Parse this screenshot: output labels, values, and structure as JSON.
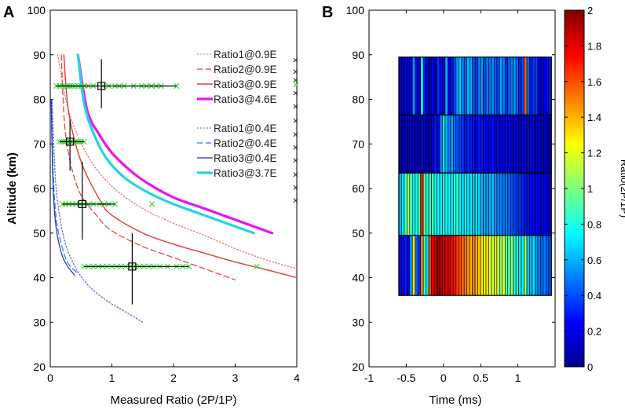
{
  "panels": {
    "a_label": "A",
    "b_label": "B"
  },
  "chart_data": [
    {
      "type": "line",
      "panel": "A",
      "xlabel": "Measured Ratio (2P/1P)",
      "ylabel": "Altitude (km)",
      "xlim": [
        0,
        4
      ],
      "ylim": [
        20,
        100
      ],
      "xticks": [
        "0",
        "1",
        "2",
        "3",
        "4"
      ],
      "yticks": [
        "20",
        "30",
        "40",
        "50",
        "60",
        "70",
        "80",
        "90",
        "100"
      ],
      "legend_group1": [
        "Ratio1@0.9E",
        "Ratio2@0.9E",
        "Ratio3@0.9E",
        "Ratio3@4.6E"
      ],
      "legend_group2": [
        "Ratio1@0.4E",
        "Ratio2@0.4E",
        "Ratio3@0.4E",
        "Ratio3@3.7E"
      ],
      "series": [
        {
          "name": "Ratio1@0.9E",
          "color": "#e8696b",
          "style": "dotted",
          "width": 1.2,
          "x": [
            0.12,
            0.3,
            0.6,
            1.0,
            1.5,
            2.0,
            2.5,
            3.0,
            3.5,
            4.0
          ],
          "y": [
            90,
            77.5,
            67.5,
            60.5,
            55.5,
            52.2,
            49.5,
            46.5,
            44,
            42
          ]
        },
        {
          "name": "Ratio2@0.9E",
          "color": "#e53935",
          "style": "dashed",
          "width": 1.2,
          "x": [
            0.18,
            0.25,
            0.45,
            0.75,
            1.0,
            1.5,
            2.0,
            2.5,
            3.0
          ],
          "y": [
            90,
            72,
            60,
            54,
            50.5,
            47,
            44.5,
            42,
            39.5
          ]
        },
        {
          "name": "Ratio3@0.9E",
          "color": "#e53935",
          "style": "solid",
          "width": 1.4,
          "x": [
            0.22,
            0.3,
            0.5,
            0.8,
            1.0,
            1.5,
            2.0,
            2.5,
            3.0,
            3.5,
            4.0
          ],
          "y": [
            90,
            77,
            66,
            57.5,
            54,
            50,
            47.5,
            45.5,
            43.5,
            41.8,
            40
          ]
        },
        {
          "name": "Ratio3@4.6E",
          "color": "#ee12ee",
          "style": "solid",
          "width": 3.2,
          "x": [
            0.45,
            0.6,
            0.8,
            1.0,
            1.3,
            1.6,
            2.0,
            2.5,
            3.0,
            3.6
          ],
          "y": [
            90,
            77.5,
            72,
            68,
            64,
            61,
            58,
            55.5,
            53,
            50
          ]
        },
        {
          "name": "Ratio1@0.4E",
          "color": "#4263d8",
          "style": "dotted",
          "width": 1.2,
          "x": [
            0.03,
            0.08,
            0.15,
            0.25,
            0.4,
            0.6,
            0.9,
            1.2,
            1.5
          ],
          "y": [
            80,
            63,
            54,
            47.5,
            42.5,
            38.5,
            35,
            32.5,
            30
          ]
        },
        {
          "name": "Ratio2@0.4E",
          "color": "#2979e6",
          "style": "dashed",
          "width": 1.2,
          "x": [
            0.02,
            0.05,
            0.1,
            0.2,
            0.3,
            0.45
          ],
          "y": [
            80,
            63,
            53,
            46.5,
            43,
            41
          ]
        },
        {
          "name": "Ratio3@0.4E",
          "color": "#1a2cc8",
          "style": "solid",
          "width": 1.2,
          "x": [
            0.015,
            0.04,
            0.08,
            0.16,
            0.26,
            0.4
          ],
          "y": [
            80,
            63,
            53,
            46.5,
            43,
            40.5
          ]
        },
        {
          "name": "Ratio3@3.7E",
          "color": "#22d6dc",
          "style": "solid",
          "width": 3.2,
          "x": [
            0.45,
            0.55,
            0.7,
            0.9,
            1.2,
            1.6,
            2.0,
            2.5,
            3.0,
            3.3
          ],
          "y": [
            90,
            79,
            72.5,
            67,
            62.5,
            59,
            56.5,
            54,
            51.5,
            50
          ]
        }
      ],
      "scatter_groups": [
        {
          "altitude": 83,
          "x": [
            0.1,
            0.15,
            0.2,
            0.24,
            0.28,
            0.32,
            0.36,
            0.4,
            0.45,
            0.5,
            0.55,
            0.62,
            0.7,
            0.85,
            0.95,
            1.05,
            1.12,
            1.2,
            1.35,
            1.48,
            1.56,
            1.64,
            1.72,
            1.8,
            2.05
          ]
        },
        {
          "altitude": 70.5,
          "x": [
            0.15,
            0.19,
            0.22,
            0.25,
            0.28,
            0.3,
            0.33,
            0.36,
            0.4,
            0.43,
            0.46,
            0.5,
            0.55
          ]
        },
        {
          "altitude": 56.5,
          "x": [
            0.2,
            0.25,
            0.3,
            0.36,
            0.42,
            0.48,
            0.55,
            0.62,
            0.7,
            0.8,
            0.88,
            0.95,
            1.05,
            1.65
          ]
        },
        {
          "altitude": 42.5,
          "x": [
            0.55,
            0.62,
            0.7,
            0.78,
            0.85,
            0.92,
            1.0,
            1.08,
            1.15,
            1.22,
            1.3,
            1.38,
            1.45,
            1.52,
            1.6,
            1.68,
            1.78,
            1.9,
            2.05,
            2.15,
            2.25,
            3.35
          ]
        }
      ],
      "edge_markers": [
        {
          "x": 3.98,
          "y": 88.8
        },
        {
          "x": 3.98,
          "y": 86.2
        },
        {
          "x": 3.98,
          "y": 84.3
        },
        {
          "x": 3.98,
          "y": 81.4
        },
        {
          "x": 3.98,
          "y": 78.4
        },
        {
          "x": 3.98,
          "y": 75.2
        },
        {
          "x": 3.98,
          "y": 72.1
        },
        {
          "x": 3.98,
          "y": 69.2
        },
        {
          "x": 3.98,
          "y": 66.3
        },
        {
          "x": 3.98,
          "y": 63.1
        },
        {
          "x": 3.98,
          "y": 60.2
        },
        {
          "x": 3.98,
          "y": 57.3
        },
        {
          "x": 3.99,
          "y": 83.2
        }
      ],
      "error_points": [
        {
          "x": 0.83,
          "y": 83,
          "xerr": [
            0.1,
            2.05
          ],
          "yerr": [
            78,
            89
          ]
        },
        {
          "x": 0.32,
          "y": 70.5,
          "xerr": [
            0.15,
            0.55
          ],
          "yerr": [
            64,
            75.5
          ]
        },
        {
          "x": 0.52,
          "y": 56.5,
          "xerr": [
            0.2,
            1.05
          ],
          "yerr": [
            48.5,
            66
          ]
        },
        {
          "x": 1.33,
          "y": 42.5,
          "xerr": [
            0.55,
            2.25
          ],
          "yerr": [
            34,
            50
          ]
        }
      ],
      "scatter_color": "#2ed82e"
    },
    {
      "type": "heatmap",
      "panel": "B",
      "xlabel": "Time (ms)",
      "ylabel": "",
      "xlim": [
        -1,
        1.5
      ],
      "ylim": [
        20,
        100
      ],
      "xticks": [
        "-1",
        "-0.5",
        "0",
        "0.5",
        "1"
      ],
      "yticks": [
        "20",
        "30",
        "40",
        "50",
        "60",
        "70",
        "80",
        "90",
        "100"
      ],
      "x_range": [
        -0.6,
        1.45
      ],
      "rows": [
        {
          "y_bottom": 76.5,
          "y_top": 89.5,
          "values": [
            0.15,
            0.12,
            0.2,
            0.18,
            0.14,
            0.55,
            0.2,
            0.12,
            0.75,
            0.3,
            0.18,
            0.14,
            0.22,
            0.1,
            0.35,
            0.25,
            0.15,
            0.6,
            0.2,
            0.28,
            0.4,
            0.55,
            0.65,
            0.5,
            0.45,
            0.62,
            0.58,
            0.42,
            0.36,
            0.5,
            0.55,
            0.4,
            0.5,
            0.48,
            0.52,
            0.44,
            0.38,
            0.58,
            0.5,
            0.35,
            0.44,
            0.5,
            0.55,
            0.45,
            0.32,
            0.4,
            1.55,
            0.45,
            0.3,
            0.35,
            0.38,
            0.2,
            0.15,
            0.22,
            0.25,
            0.3
          ]
        },
        {
          "y_bottom": 63.5,
          "y_top": 76.5,
          "values": [
            0.08,
            0.1,
            0.12,
            0.1,
            0.12,
            0.15,
            0.1,
            0.12,
            0.18,
            0.14,
            0.1,
            0.12,
            0.16,
            0.3,
            0.2,
            0.5,
            0.7,
            0.6,
            0.5,
            0.55,
            0.45,
            0.42,
            0.38,
            0.35,
            0.3,
            0.32,
            0.3,
            0.28,
            0.25,
            0.3,
            0.28,
            0.25,
            0.22,
            0.24,
            0.28,
            0.2,
            0.22,
            0.18,
            0.2,
            0.22,
            0.2,
            0.18,
            0.15,
            0.2,
            0.16,
            0.18,
            0.2,
            0.15,
            0.18,
            0.16,
            0.14,
            0.15,
            0.12,
            0.13,
            0.12,
            0.12
          ]
        },
        {
          "y_bottom": 49.5,
          "y_top": 63.5,
          "values": [
            0.6,
            0.7,
            0.85,
            1.05,
            0.9,
            0.75,
            0.8,
            0.9,
            1.7,
            0.95,
            0.8,
            0.85,
            0.9,
            0.75,
            0.78,
            0.72,
            0.8,
            0.76,
            0.74,
            0.7,
            0.82,
            0.85,
            0.72,
            0.68,
            0.75,
            0.7,
            0.72,
            0.65,
            0.7,
            0.68,
            0.6,
            0.58,
            0.55,
            0.6,
            0.62,
            0.55,
            0.5,
            0.52,
            0.48,
            0.5,
            0.45,
            0.42,
            0.4,
            0.38,
            0.35,
            0.32,
            0.3,
            0.28,
            0.25,
            0.22,
            0.25,
            0.2,
            0.22,
            0.18,
            0.2,
            0.2
          ]
        },
        {
          "y_bottom": 36,
          "y_top": 49.5,
          "values": [
            0.25,
            0.22,
            0.3,
            0.25,
            0.55,
            1.3,
            0.45,
            0.35,
            1.5,
            0.9,
            0.7,
            1.6,
            1.75,
            1.85,
            1.95,
            1.9,
            1.85,
            1.8,
            1.85,
            1.75,
            1.7,
            1.65,
            1.6,
            1.55,
            1.5,
            1.45,
            1.4,
            1.5,
            1.4,
            1.35,
            1.3,
            1.25,
            1.3,
            1.2,
            1.1,
            1.3,
            1.15,
            1.0,
            1.2,
            0.95,
            0.9,
            1.05,
            0.8,
            0.85,
            0.7,
            0.75,
            1.1,
            0.65,
            0.6,
            0.7,
            0.55,
            0.5,
            0.45,
            0.5,
            0.42,
            0.4
          ]
        }
      ],
      "colorbar": {
        "label": "Ratio(2P/1P)",
        "range": [
          0,
          2
        ],
        "ticks": [
          "0",
          "0.2",
          "0.4",
          "0.6",
          "0.8",
          "1",
          "1.2",
          "1.4",
          "1.6",
          "1.8",
          "2"
        ]
      }
    }
  ]
}
